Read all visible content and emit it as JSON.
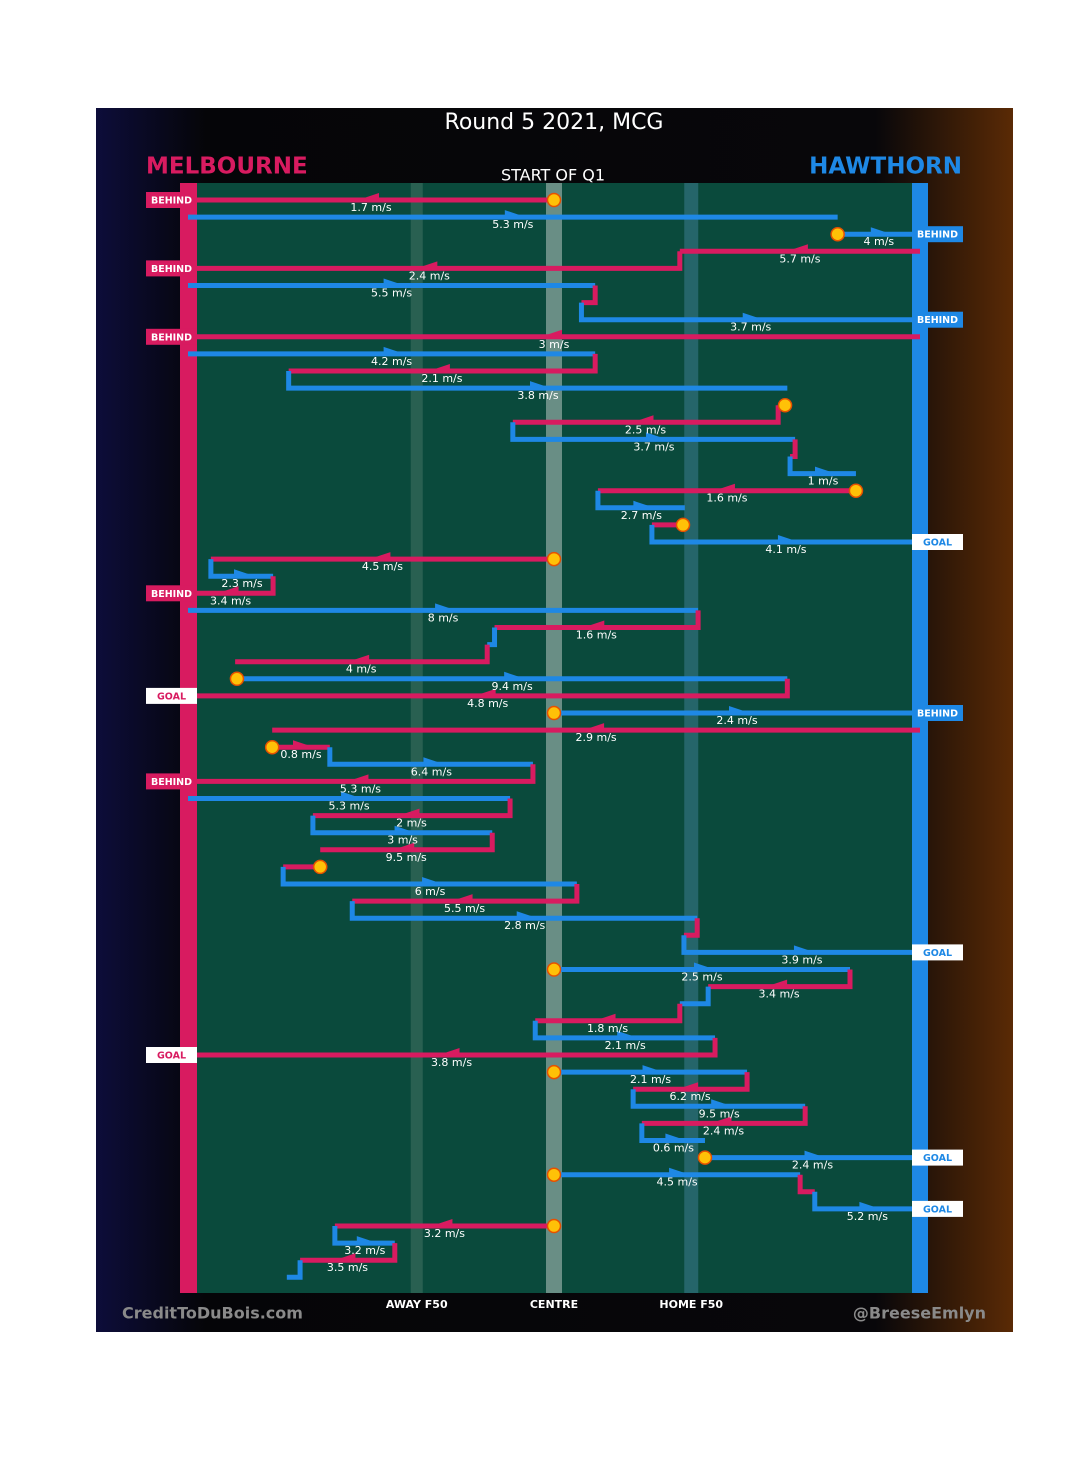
{
  "chart_data": {
    "type": "chain",
    "title": "Round 5 2021, MCG",
    "subtitle": "START OF Q1",
    "teams": [
      {
        "name": "MELBOURNE",
        "color": "#d81b60"
      },
      {
        "name": "HAWTHORN",
        "color": "#1e88e5"
      }
    ],
    "xlim": [
      0,
      160
    ],
    "xticks": [
      {
        "value": 50,
        "label": "AWAY F50"
      },
      {
        "value": 80,
        "label": "CENTRE"
      },
      {
        "value": 110,
        "label": "HOME F50"
      }
    ],
    "footer_left": "CreditToDuBois.com",
    "footer_right": "@BreeseEmlyn",
    "segments": [
      {
        "team": "MELBOURNE",
        "from": 80,
        "to": 0,
        "speed": 1.7,
        "speed_label": "1.7 m/s",
        "ball_up": true,
        "result": "BEHIND"
      },
      {
        "team": "HAWTHORN",
        "from": 0,
        "to": 142,
        "speed": 5.3,
        "speed_label": "5.3 m/s"
      },
      {
        "team": "HAWTHORN",
        "from": 142,
        "to": 160,
        "speed": 4,
        "speed_label": "4 m/s",
        "ball_up": true,
        "result": "BEHIND"
      },
      {
        "team": "MELBOURNE",
        "from": 160,
        "to": 107.5,
        "speed": 5.7,
        "speed_label": "5.7 m/s"
      },
      {
        "team": "MELBOURNE",
        "from": 105.5,
        "to": 0,
        "speed": 2.4,
        "speed_label": "2.4 m/s",
        "result": "BEHIND"
      },
      {
        "team": "HAWTHORN",
        "from": 0,
        "to": 89,
        "speed": 5.5,
        "speed_label": "5.5 m/s"
      },
      {
        "team": "MELBOURNE",
        "from": 89,
        "to": 86,
        "speed": null
      },
      {
        "team": "HAWTHORN",
        "from": 86,
        "to": 160,
        "speed": 3.7,
        "speed_label": "3.7 m/s",
        "result": "BEHIND"
      },
      {
        "team": "MELBOURNE",
        "from": 160,
        "to": 0,
        "speed": 3,
        "speed_label": "3 m/s",
        "result": "BEHIND"
      },
      {
        "team": "HAWTHORN",
        "from": 0,
        "to": 89,
        "speed": 4.2,
        "speed_label": "4.2 m/s"
      },
      {
        "team": "MELBOURNE",
        "from": 89,
        "to": 22,
        "speed": 2.1,
        "speed_label": "2.1 m/s"
      },
      {
        "team": "HAWTHORN",
        "from": 22,
        "to": 131,
        "speed": 3.8,
        "speed_label": "3.8 m/s"
      },
      {
        "team": "MELBOURNE",
        "from": 130.5,
        "to": 129,
        "speed": null,
        "ball_up": true
      },
      {
        "team": "MELBOURNE",
        "from": 129,
        "to": 71,
        "speed": 2.5,
        "speed_label": "2.5 m/s"
      },
      {
        "team": "HAWTHORN",
        "from": 71,
        "to": 132.7,
        "speed": 3.7,
        "speed_label": "3.7 m/s"
      },
      {
        "team": "MELBOURNE",
        "from": 132.7,
        "to": 131.6,
        "speed": null
      },
      {
        "team": "HAWTHORN",
        "from": 131.6,
        "to": 146,
        "speed": 1,
        "speed_label": "1 m/s"
      },
      {
        "team": "MELBOURNE",
        "from": 146,
        "to": 89.6,
        "speed": 1.6,
        "speed_label": "1.6 m/s",
        "ball_up": true
      },
      {
        "team": "HAWTHORN",
        "from": 89.6,
        "to": 108.6,
        "speed": 2.7,
        "speed_label": "2.7 m/s"
      },
      {
        "team": "MELBOURNE",
        "from": 108.2,
        "to": 101.4,
        "speed": null,
        "ball_up": true
      },
      {
        "team": "HAWTHORN",
        "from": 101.4,
        "to": 160,
        "speed": 4.1,
        "speed_label": "4.1 m/s",
        "result": "GOAL"
      },
      {
        "team": "MELBOURNE",
        "from": 80,
        "to": 5,
        "speed": 4.5,
        "speed_label": "4.5 m/s",
        "ball_up": true
      },
      {
        "team": "HAWTHORN",
        "from": 5,
        "to": 18.6,
        "speed": 2.3,
        "speed_label": "2.3 m/s"
      },
      {
        "team": "MELBOURNE",
        "from": 18.6,
        "to": 0,
        "speed": 3.4,
        "speed_label": "3.4 m/s",
        "result": "BEHIND"
      },
      {
        "team": "HAWTHORN",
        "from": 0,
        "to": 111.5,
        "speed": 8,
        "speed_label": "8 m/s"
      },
      {
        "team": "MELBOURNE",
        "from": 111.5,
        "to": 67,
        "speed": 1.6,
        "speed_label": "1.6 m/s"
      },
      {
        "team": "HAWTHORN",
        "from": 67,
        "to": 65.4,
        "speed": null
      },
      {
        "team": "MELBOURNE",
        "from": 65.4,
        "to": 10.3,
        "speed": 4,
        "speed_label": "4 m/s"
      },
      {
        "team": "HAWTHORN",
        "from": 10.7,
        "to": 131,
        "speed": 9.4,
        "speed_label": "9.4 m/s",
        "ball_up": true
      },
      {
        "team": "MELBOURNE",
        "from": 131,
        "to": 0,
        "speed": 4.8,
        "speed_label": "4.8 m/s",
        "result": "GOAL"
      },
      {
        "team": "HAWTHORN",
        "from": 80,
        "to": 160,
        "speed": 2.4,
        "speed_label": "2.4 m/s",
        "ball_up": true,
        "result": "BEHIND"
      },
      {
        "team": "MELBOURNE",
        "from": 160,
        "to": 18.4,
        "speed": 2.9,
        "speed_label": "2.9 m/s"
      },
      {
        "team": "MELBOURNE",
        "from": 18.4,
        "to": 31,
        "speed": 0.8,
        "speed_label": "0.8 m/s",
        "ball_up": true
      },
      {
        "team": "HAWTHORN",
        "from": 31,
        "to": 75.4,
        "speed": 6.4,
        "speed_label": "6.4 m/s"
      },
      {
        "team": "MELBOURNE",
        "from": 75.4,
        "to": 0,
        "speed": 5.3,
        "speed_label": "5.3 m/s",
        "result": "BEHIND"
      },
      {
        "team": "HAWTHORN",
        "from": 0,
        "to": 70.4,
        "speed": 5.3,
        "speed_label": "5.3 m/s"
      },
      {
        "team": "MELBOURNE",
        "from": 70.4,
        "to": 27.3,
        "speed": 2,
        "speed_label": "2 m/s"
      },
      {
        "team": "HAWTHORN",
        "from": 27.3,
        "to": 66.5,
        "speed": 3,
        "speed_label": "3 m/s"
      },
      {
        "team": "MELBOURNE",
        "from": 66.5,
        "to": 28.9,
        "speed": 9.5,
        "speed_label": "9.5 m/s"
      },
      {
        "team": "MELBOURNE",
        "from": 28.9,
        "to": 20.8,
        "speed": null,
        "ball_up": true
      },
      {
        "team": "HAWTHORN",
        "from": 20.8,
        "to": 85,
        "speed": 6,
        "speed_label": "6 m/s"
      },
      {
        "team": "MELBOURNE",
        "from": 85,
        "to": 35.9,
        "speed": 5.5,
        "speed_label": "5.5 m/s"
      },
      {
        "team": "HAWTHORN",
        "from": 35.9,
        "to": 111.3,
        "speed": 2.8,
        "speed_label": "2.8 m/s"
      },
      {
        "team": "MELBOURNE",
        "from": 111.3,
        "to": 108.4,
        "speed": null
      },
      {
        "team": "HAWTHORN",
        "from": 108.4,
        "to": 160,
        "speed": 3.9,
        "speed_label": "3.9 m/s",
        "result": "GOAL"
      },
      {
        "team": "HAWTHORN",
        "from": 80,
        "to": 144.7,
        "speed": 2.5,
        "speed_label": "2.5 m/s",
        "ball_up": true
      },
      {
        "team": "MELBOURNE",
        "from": 144.7,
        "to": 113.7,
        "speed": 3.4,
        "speed_label": "3.4 m/s"
      },
      {
        "team": "HAWTHORN",
        "from": 113.7,
        "to": 107.5,
        "speed": null
      },
      {
        "team": "MELBOURNE",
        "from": 107.5,
        "to": 75.9,
        "speed": 1.8,
        "speed_label": "1.8 m/s"
      },
      {
        "team": "HAWTHORN",
        "from": 75.9,
        "to": 115.2,
        "speed": 2.1,
        "speed_label": "2.1 m/s"
      },
      {
        "team": "MELBOURNE",
        "from": 115.2,
        "to": 0,
        "speed": 3.8,
        "speed_label": "3.8 m/s",
        "result": "GOAL"
      },
      {
        "team": "HAWTHORN",
        "from": 80,
        "to": 122.2,
        "speed": 2.1,
        "speed_label": "2.1 m/s",
        "ball_up": true
      },
      {
        "team": "MELBOURNE",
        "from": 122.2,
        "to": 97.3,
        "speed": 6.2,
        "speed_label": "6.2 m/s"
      },
      {
        "team": "HAWTHORN",
        "from": 97.3,
        "to": 134.9,
        "speed": 9.5,
        "speed_label": "9.5 m/s"
      },
      {
        "team": "MELBOURNE",
        "from": 134.9,
        "to": 99.2,
        "speed": 2.4,
        "speed_label": "2.4 m/s"
      },
      {
        "team": "HAWTHORN",
        "from": 99.2,
        "to": 113,
        "speed": 0.6,
        "speed_label": "0.6 m/s"
      },
      {
        "team": "HAWTHORN",
        "from": 113,
        "to": 160,
        "speed": 2.4,
        "speed_label": "2.4 m/s",
        "ball_up": true,
        "result": "GOAL"
      },
      {
        "team": "HAWTHORN",
        "from": 80,
        "to": 133.8,
        "speed": 4.5,
        "speed_label": "4.5 m/s",
        "ball_up": true
      },
      {
        "team": "MELBOURNE",
        "from": 133.8,
        "to": 137,
        "speed": null
      },
      {
        "team": "HAWTHORN",
        "from": 137,
        "to": 160,
        "speed": 5.2,
        "speed_label": "5.2 m/s",
        "result": "GOAL"
      },
      {
        "team": "MELBOURNE",
        "from": 80,
        "to": 32.1,
        "speed": 3.2,
        "speed_label": "3.2 m/s",
        "ball_up": true
      },
      {
        "team": "HAWTHORN",
        "from": 32.1,
        "to": 45.2,
        "speed": 3.2,
        "speed_label": "3.2 m/s"
      },
      {
        "team": "MELBOURNE",
        "from": 45.2,
        "to": 24.5,
        "speed": 3.5,
        "speed_label": "3.5 m/s"
      },
      {
        "team": "HAWTHORN",
        "from": 24.5,
        "to": 21.6,
        "speed": null
      }
    ]
  }
}
